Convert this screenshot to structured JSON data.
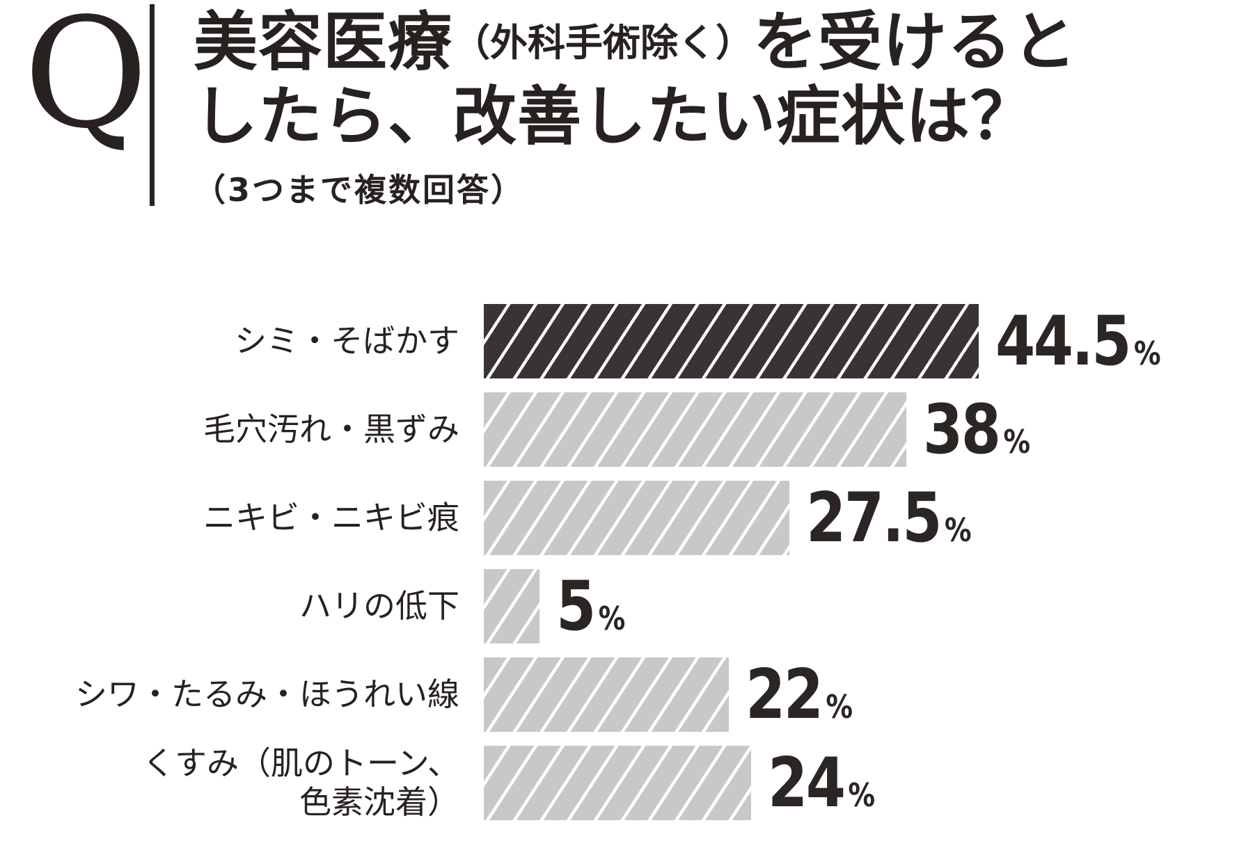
{
  "q_mark": "Q",
  "title": {
    "line1_main": "美容医療",
    "line1_paren": "（外科手術除く）",
    "line1_tail": "を受けると",
    "line2": "したら、改善したい症状は？",
    "note": "（3つまで複数回答）"
  },
  "colors": {
    "ink": "#272120",
    "bar_highlight": "#3a3335",
    "bar_normal": "#c8c8c9",
    "hatch_stripe": "#ffffff"
  },
  "chart_data": {
    "type": "bar",
    "orientation": "horizontal",
    "title": "美容医療（外科手術除く）を受けるとしたら、改善したい症状は？",
    "subtitle": "（3つまで複数回答）",
    "unit": "%",
    "categories": [
      "シミ・そばかす",
      "毛穴汚れ・黒ずみ",
      "ニキビ・ニキビ痕",
      "ハリの低下",
      "シワ・たるみ・ほうれい線",
      "くすみ（肌のトーン、色素沈着）"
    ],
    "values": [
      44.5,
      38,
      27.5,
      5,
      22,
      24
    ],
    "xlim": [
      0,
      47
    ],
    "grid": false,
    "legend": false,
    "highlight_index": 0,
    "bar_style": "white diagonal hatch stripes over solid fill"
  },
  "rows": [
    {
      "label_lines": [
        "シミ・そばかす"
      ],
      "value_text": "44.5",
      "highlighted": true
    },
    {
      "label_lines": [
        "毛穴汚れ・黒ずみ"
      ],
      "value_text": "38",
      "highlighted": false
    },
    {
      "label_lines": [
        "ニキビ・ニキビ痕"
      ],
      "value_text": "27.5",
      "highlighted": false
    },
    {
      "label_lines": [
        "ハリの低下"
      ],
      "value_text": "5",
      "highlighted": false
    },
    {
      "label_lines": [
        "シワ・たるみ・ほうれい線"
      ],
      "value_text": "22",
      "highlighted": false
    },
    {
      "label_lines": [
        "くすみ（肌のトーン、",
        "色素沈着）"
      ],
      "value_text": "24",
      "highlighted": false
    }
  ]
}
